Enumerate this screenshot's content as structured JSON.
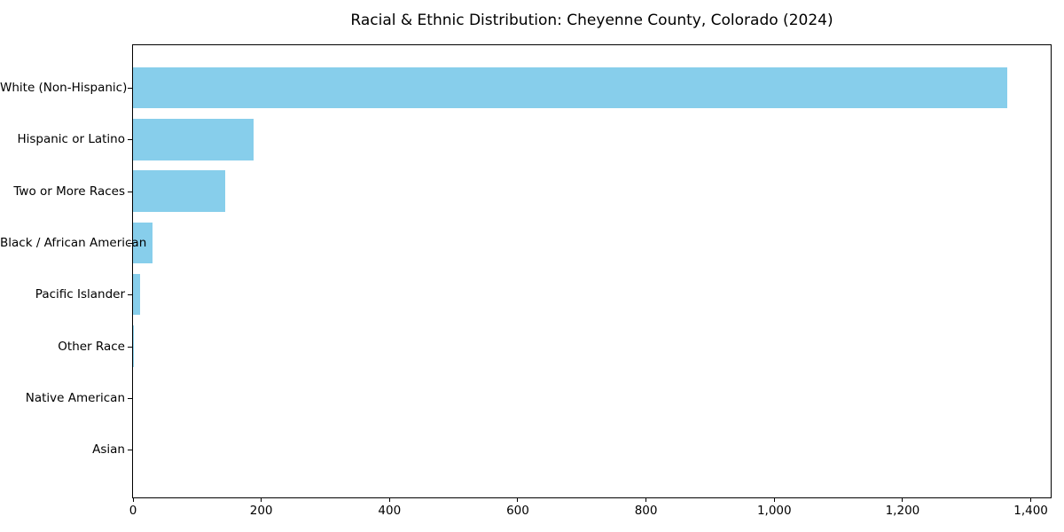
{
  "chart_data": {
    "type": "bar",
    "orientation": "horizontal",
    "title": "Racial & Ethnic Distribution: Cheyenne County, Colorado (2024)",
    "xlabel": "",
    "ylabel": "",
    "categories": [
      "White (Non-Hispanic)",
      "Hispanic or Latino",
      "Two or More Races",
      "Black / African American",
      "Pacific Islander",
      "Other Race",
      "Native American",
      "Asian"
    ],
    "values": [
      1363,
      188,
      144,
      30,
      11,
      2,
      0,
      0
    ],
    "xlim": [
      0,
      1431
    ],
    "x_ticks": [
      0,
      200,
      400,
      600,
      800,
      1000,
      1200,
      1400
    ],
    "x_tick_labels": [
      "0",
      "200",
      "400",
      "600",
      "800",
      "1,000",
      "1,200",
      "1,400"
    ],
    "bar_color": "#87CEEB",
    "axis_color": "#000000",
    "background_color": "#ffffff",
    "grid": false,
    "legend": null
  }
}
